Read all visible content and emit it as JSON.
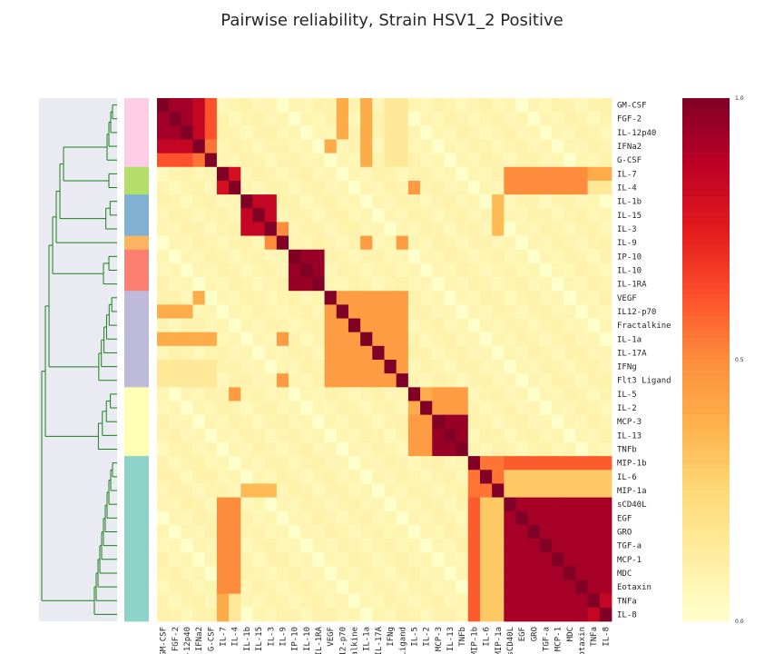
{
  "chart_data": {
    "type": "heatmap",
    "title": "Pairwise reliability, Strain HSV1_2 Positive",
    "labels": [
      "GM-CSF",
      "FGF-2",
      "IL-12p40",
      "IFNa2",
      "G-CSF",
      "IL-7",
      "IL-4",
      "IL-1b",
      "IL-15",
      "IL-3",
      "IL-9",
      "IP-10",
      "IL-10",
      "IL-1RA",
      "VEGF",
      "IL12-p70",
      "Fractalkine",
      "IL-1a",
      "IL-17A",
      "IFNg",
      "Flt3 Ligand",
      "IL-5",
      "IL-2",
      "MCP-3",
      "IL-13",
      "TNFb",
      "MIP-1b",
      "IL-6",
      "MIP-1a",
      "sCD40L",
      "EGF",
      "GRO",
      "TGF-a",
      "MCP-1",
      "MDC",
      "Eotaxin",
      "TNFa",
      "IL-8"
    ],
    "xtick_labels": [
      "GM-CSF",
      "FGF-2",
      "IL-12p40",
      "IFNa2",
      "G-CSF",
      "IL-7",
      "IL-4",
      "IL-1b",
      "IL-15",
      "IL-3",
      "IL-9",
      "IP-10",
      "IL-10",
      "IL-1RA",
      "VEGF",
      "IL12-p70",
      "Fractalkine",
      "IL-1a",
      "IL-17A",
      "IFNg",
      "Flt3 Ligand",
      "IL-5",
      "IL-2",
      "MCP-3",
      "IL-13",
      "TNFb",
      "MIP-1b",
      "IL-6",
      "MIP-1a",
      "sCD40L",
      "EGF",
      "GRO",
      "TGF-a",
      "MCP-1",
      "MDC",
      "Eotaxin",
      "TNFa",
      "IL-8"
    ],
    "clusters": [
      {
        "size": 5,
        "color": "#fccde5"
      },
      {
        "size": 2,
        "color": "#b3de69"
      },
      {
        "size": 3,
        "color": "#80b1d3"
      },
      {
        "size": 1,
        "color": "#fdb462"
      },
      {
        "size": 3,
        "color": "#fb8072"
      },
      {
        "size": 7,
        "color": "#bebada"
      },
      {
        "size": 5,
        "color": "#ffffb3"
      },
      {
        "size": 12,
        "color": "#8dd3c7"
      }
    ],
    "colorbar": {
      "min": 0.0,
      "max": 1.0,
      "ticks": [
        "0.0",
        "0.5",
        "1.0"
      ],
      "colormap": "YlOrRd"
    },
    "blocks": [
      {
        "r": [
          0,
          2
        ],
        "c": [
          0,
          2
        ],
        "v": 0.93
      },
      {
        "r": [
          0,
          2
        ],
        "c": [
          3,
          3
        ],
        "v": 0.85
      },
      {
        "r": [
          0,
          2
        ],
        "c": [
          4,
          4
        ],
        "v": 0.62
      },
      {
        "r": [
          3,
          3
        ],
        "c": [
          0,
          2
        ],
        "v": 0.72
      },
      {
        "r": [
          3,
          3
        ],
        "c": [
          4,
          4
        ],
        "v": 0.5
      },
      {
        "r": [
          4,
          4
        ],
        "c": [
          0,
          3
        ],
        "v": 0.55
      },
      {
        "r": [
          0,
          2
        ],
        "c": [
          15,
          15
        ],
        "v": 0.4
      },
      {
        "r": [
          0,
          4
        ],
        "c": [
          19,
          20
        ],
        "v": 0.15
      },
      {
        "r": [
          5,
          6
        ],
        "c": [
          5,
          6
        ],
        "v": 0.8
      },
      {
        "r": [
          5,
          6
        ],
        "c": [
          29,
          35
        ],
        "v": 0.5
      },
      {
        "r": [
          6,
          6
        ],
        "c": [
          21,
          21
        ],
        "v": 0.45
      },
      {
        "r": [
          7,
          9
        ],
        "c": [
          7,
          9
        ],
        "v": 0.85
      },
      {
        "r": [
          7,
          9
        ],
        "c": [
          28,
          28
        ],
        "v": 0.35
      },
      {
        "r": [
          10,
          10
        ],
        "c": [
          9,
          9
        ],
        "v": 0.5
      },
      {
        "r": [
          10,
          10
        ],
        "c": [
          17,
          17
        ],
        "v": 0.45
      },
      {
        "r": [
          11,
          13
        ],
        "c": [
          11,
          13
        ],
        "v": 0.95
      },
      {
        "r": [
          14,
          20
        ],
        "c": [
          14,
          20
        ],
        "v": 0.45
      },
      {
        "r": [
          14,
          14
        ],
        "c": [
          3,
          3
        ],
        "v": 0.4
      },
      {
        "r": [
          17,
          17
        ],
        "c": [
          0,
          4
        ],
        "v": 0.4
      },
      {
        "r": [
          20,
          20
        ],
        "c": [
          10,
          10
        ],
        "v": 0.45
      },
      {
        "r": [
          21,
          25
        ],
        "c": [
          21,
          22
        ],
        "v": 0.4
      },
      {
        "r": [
          21,
          22
        ],
        "c": [
          23,
          25
        ],
        "v": 0.45
      },
      {
        "r": [
          23,
          25
        ],
        "c": [
          23,
          25
        ],
        "v": 0.95
      },
      {
        "r": [
          26,
          28
        ],
        "c": [
          26,
          28
        ],
        "v": 0.55
      },
      {
        "r": [
          26,
          26
        ],
        "c": [
          29,
          37
        ],
        "v": 0.6
      },
      {
        "r": [
          27,
          28
        ],
        "c": [
          29,
          37
        ],
        "v": 0.3
      },
      {
        "r": [
          29,
          37
        ],
        "c": [
          26,
          26
        ],
        "v": 0.55
      },
      {
        "r": [
          29,
          37
        ],
        "c": [
          27,
          27
        ],
        "v": 0.25
      },
      {
        "r": [
          29,
          37
        ],
        "c": [
          5,
          5
        ],
        "v": 0.4
      },
      {
        "r": [
          29,
          37
        ],
        "c": [
          6,
          6
        ],
        "v": 0.15
      },
      {
        "r": [
          29,
          37
        ],
        "c": [
          29,
          37
        ],
        "v": 0.92
      },
      {
        "r": [
          29,
          37
        ],
        "c": [
          36,
          37
        ],
        "v": 0.85
      }
    ]
  }
}
